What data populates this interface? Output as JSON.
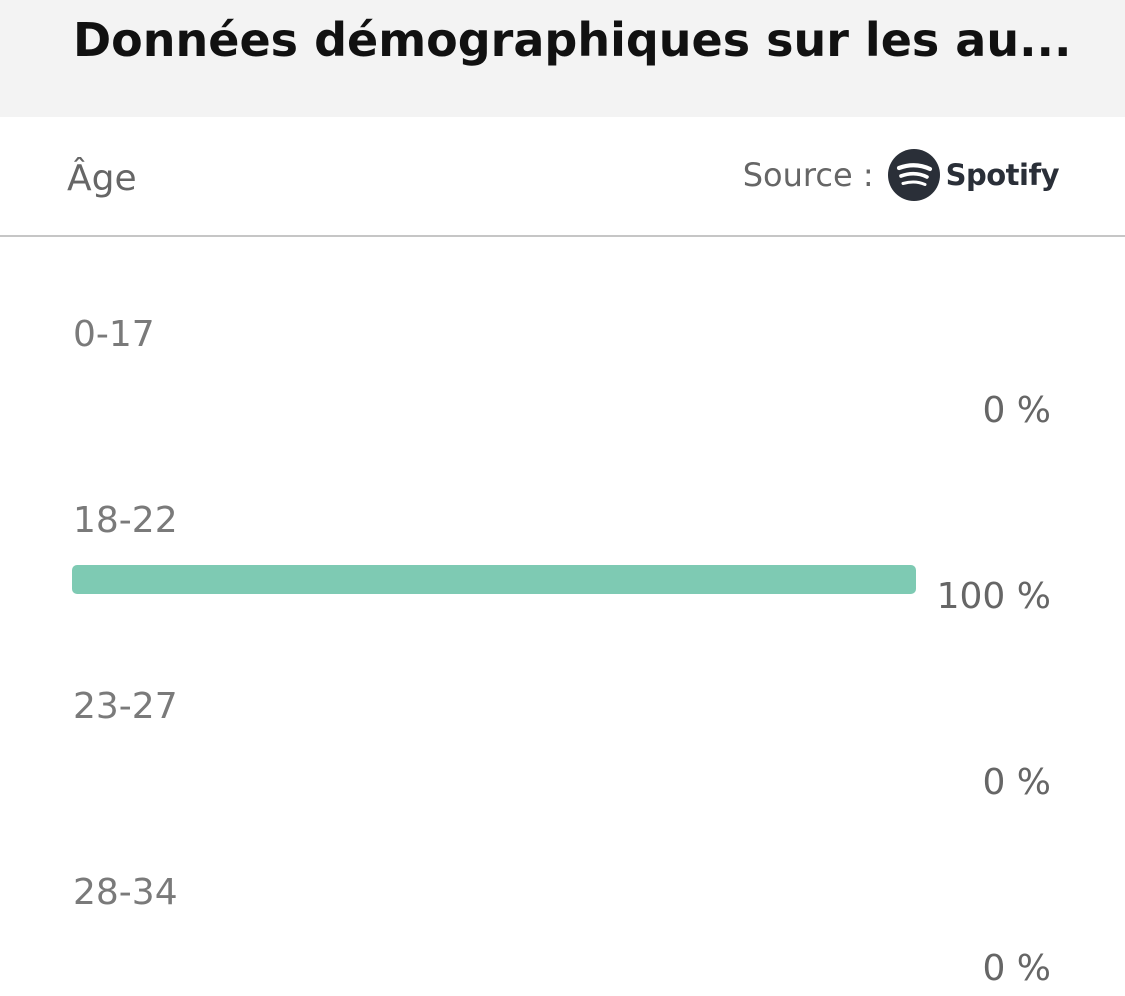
{
  "header": {
    "title": "Données démographiques sur les au..."
  },
  "subheader": {
    "age_label": "Âge",
    "source_label": "Source :",
    "source_brand": "Spotify",
    "source_icon": "spotify-icon",
    "brand_color": "#2a2f38"
  },
  "age_groups": [
    {
      "label": "0-17",
      "value_text": "0 %",
      "fraction": 0
    },
    {
      "label": "18-22",
      "value_text": "100 %",
      "fraction": 1
    },
    {
      "label": "23-27",
      "value_text": "0 %",
      "fraction": 0
    },
    {
      "label": "28-34",
      "value_text": "0 %",
      "fraction": 0
    }
  ],
  "colors": {
    "bar": "#7ecab3",
    "header_bg": "#f3f3f3"
  }
}
